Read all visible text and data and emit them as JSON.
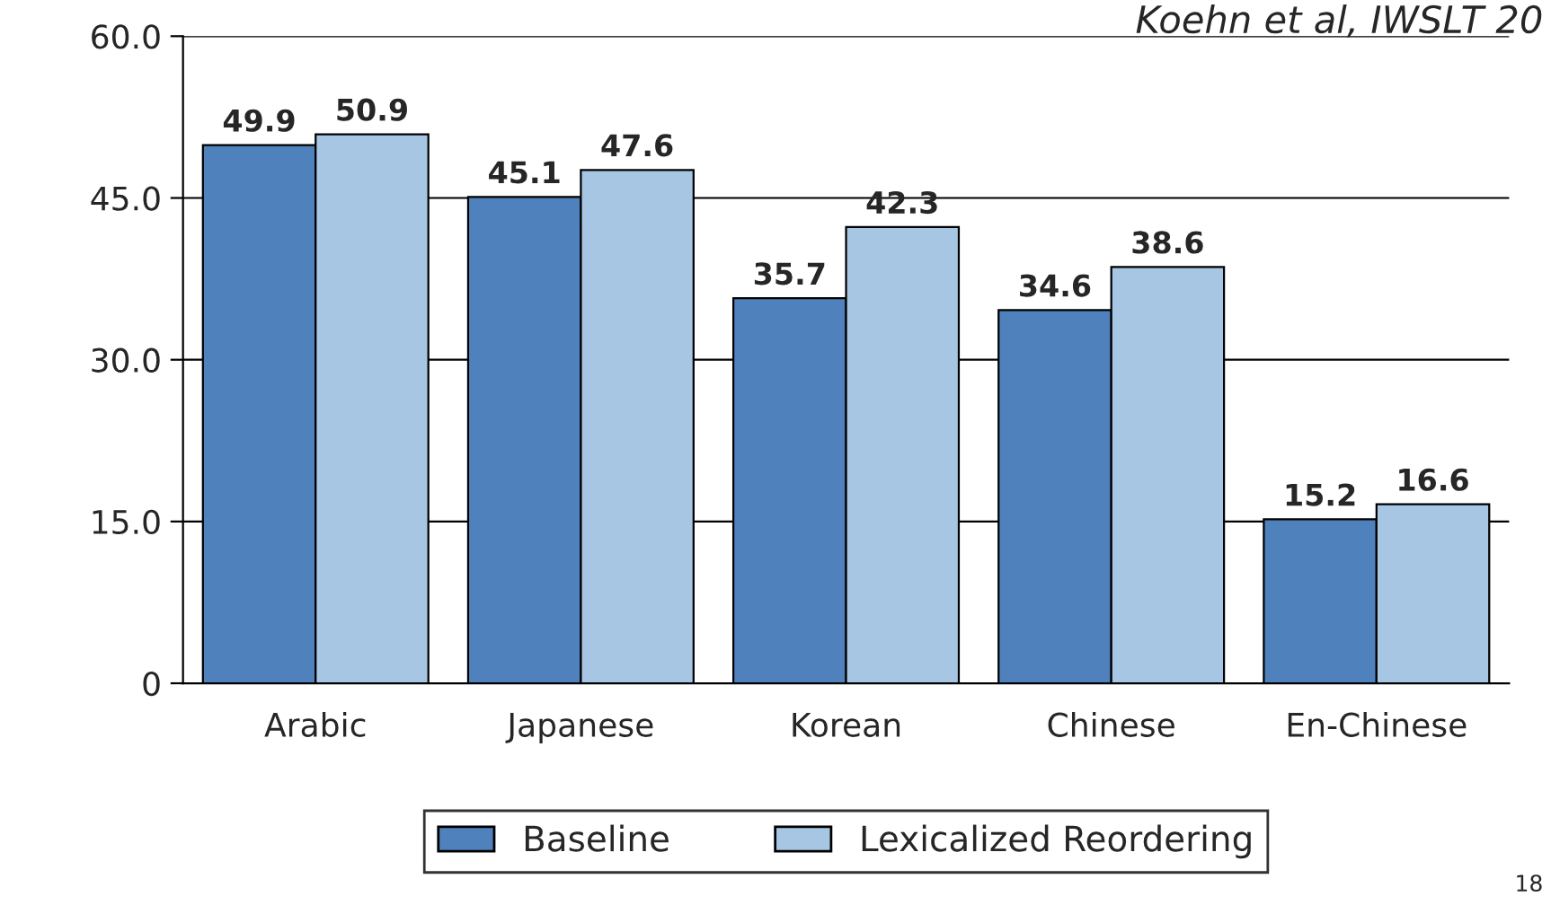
{
  "chart_data": {
    "type": "bar",
    "categories": [
      "Arabic",
      "Japanese",
      "Korean",
      "Chinese",
      "En-Chinese"
    ],
    "series": [
      {
        "name": "Baseline",
        "color": "#4f81bd",
        "values": [
          49.9,
          45.1,
          35.7,
          34.6,
          15.2
        ]
      },
      {
        "name": "Lexicalized Reordering",
        "color": "#a7c6e4",
        "values": [
          50.9,
          47.6,
          42.3,
          38.6,
          16.6
        ]
      }
    ],
    "ylim": [
      0,
      60
    ],
    "yticks": [
      {
        "value": 0,
        "label": "0"
      },
      {
        "value": 15,
        "label": "15.0"
      },
      {
        "value": 30,
        "label": "30.0"
      },
      {
        "value": 45,
        "label": "45.0"
      },
      {
        "value": 60,
        "label": "60.0"
      }
    ],
    "grid": "y",
    "data_labels": true,
    "legend": "bottom",
    "annotations": [
      "Koehn et al, IWSLT 20",
      "18"
    ]
  }
}
